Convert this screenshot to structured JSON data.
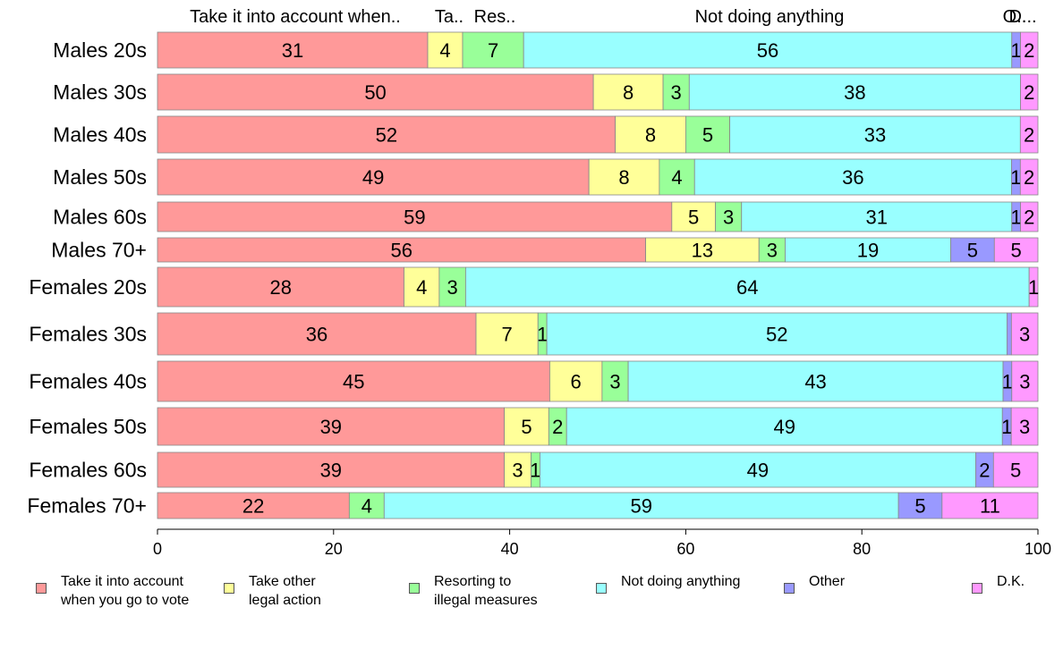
{
  "chart_data": {
    "type": "bar",
    "orientation": "horizontal",
    "stacked": true,
    "xlim": [
      0,
      100
    ],
    "xticks": [
      0,
      20,
      40,
      60,
      80,
      100
    ],
    "grid": false,
    "legend_position": "bottom",
    "categories": [
      "Males 20s",
      "Males 30s",
      "Males 40s",
      "Males 50s",
      "Males 60s",
      "Males 70+",
      "Females 20s",
      "Females 30s",
      "Females 40s",
      "Females 50s",
      "Females 60s",
      "Females 70+"
    ],
    "top_labels": [
      "Take it into account when..",
      "Ta..",
      "Res..",
      "Not doing anything",
      "O..",
      "D..."
    ],
    "series": [
      {
        "name": "Take it into account when you go to vote",
        "legend_label": "Take it into account\nwhen you go to vote",
        "color": "#ff9999",
        "values": [
          31,
          50,
          52,
          49,
          59,
          56,
          28,
          36,
          45,
          39,
          39,
          22
        ]
      },
      {
        "name": "Take other legal action",
        "legend_label": "Take other\nlegal action",
        "color": "#ffff99",
        "values": [
          4,
          8,
          8,
          8,
          5,
          13,
          4,
          7,
          6,
          5,
          3,
          0
        ]
      },
      {
        "name": "Resorting to illegal measures",
        "legend_label": "Resorting to\nillegal measures",
        "color": "#99ff99",
        "values": [
          7,
          3,
          5,
          4,
          3,
          3,
          3,
          1,
          3,
          2,
          1,
          4
        ]
      },
      {
        "name": "Not doing anything",
        "legend_label": "Not doing anything",
        "color": "#99ffff",
        "values": [
          56,
          38,
          33,
          36,
          31,
          19,
          64,
          52,
          43,
          49,
          49,
          59
        ]
      },
      {
        "name": "Other",
        "legend_label": "Other",
        "color": "#9999ff",
        "values": [
          1,
          0,
          0,
          1,
          1,
          5,
          0,
          0.5,
          1,
          1,
          2,
          5
        ]
      },
      {
        "name": "D.K.",
        "legend_label": "D.K.",
        "color": "#ff99ff",
        "values": [
          2,
          2,
          2,
          2,
          2,
          5,
          1,
          3,
          3,
          3,
          5,
          11
        ]
      }
    ],
    "bar_labels": [
      [
        "31",
        "4",
        "7",
        "56",
        "1",
        "2"
      ],
      [
        "50",
        "8",
        "3",
        "38",
        "",
        "2"
      ],
      [
        "52",
        "8",
        "5",
        "33",
        "",
        "2"
      ],
      [
        "49",
        "8",
        "4",
        "36",
        "1",
        "2"
      ],
      [
        "59",
        "5",
        "3",
        "31",
        "1",
        "2"
      ],
      [
        "56",
        "13",
        "3",
        "19",
        "5",
        "5"
      ],
      [
        "28",
        "4",
        "3",
        "64",
        "",
        "1"
      ],
      [
        "36",
        "7",
        "1",
        "52",
        "",
        "3"
      ],
      [
        "45",
        "6",
        "3",
        "43",
        "1",
        "3"
      ],
      [
        "39",
        "5",
        "2",
        "49",
        "1",
        "3"
      ],
      [
        "39",
        "3",
        "1",
        "49",
        "2",
        "5"
      ],
      [
        "22",
        "",
        "4",
        "59",
        "5",
        "11"
      ]
    ]
  }
}
